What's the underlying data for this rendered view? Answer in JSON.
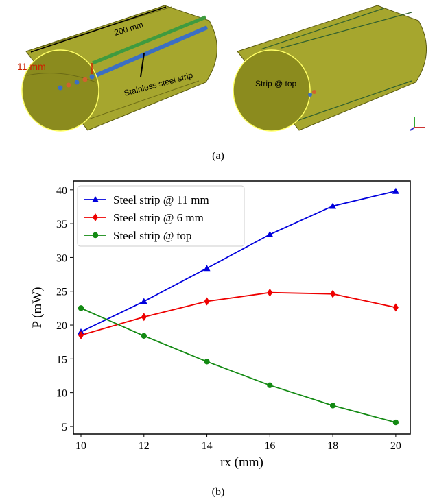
{
  "figure": {
    "length_label": "200 mm",
    "offset_label": "11 mm",
    "strip_label": "Stainless steel strip",
    "top_label": "Strip @ top",
    "panel_a": "(a)",
    "panel_b": "(b)"
  },
  "chart_data": {
    "type": "line",
    "xlabel": "rx (mm)",
    "ylabel": "P (mW)",
    "x": [
      10,
      12,
      14,
      16,
      18,
      20
    ],
    "series": [
      {
        "name": "Steel strip @ 11 mm",
        "color": "#0000dd",
        "marker": "triangle",
        "values": [
          19.0,
          23.5,
          28.4,
          33.4,
          37.6,
          39.8
        ]
      },
      {
        "name": "Steel strip @ 6 mm",
        "color": "#ee0000",
        "marker": "diamond",
        "values": [
          18.5,
          21.2,
          23.5,
          24.8,
          24.6,
          22.6
        ]
      },
      {
        "name": "Steel strip @ top",
        "color": "#138a13",
        "marker": "circle",
        "values": [
          22.5,
          18.4,
          14.6,
          11.1,
          8.1,
          5.6
        ]
      }
    ],
    "xlim": [
      9.76,
      20.46
    ],
    "ylim": [
      3.88,
      41.3
    ],
    "xticks": [
      10,
      12,
      14,
      16,
      18,
      20
    ],
    "yticks": [
      5,
      10,
      15,
      20,
      25,
      30,
      35,
      40
    ],
    "legend": "upper left",
    "grid": false
  }
}
